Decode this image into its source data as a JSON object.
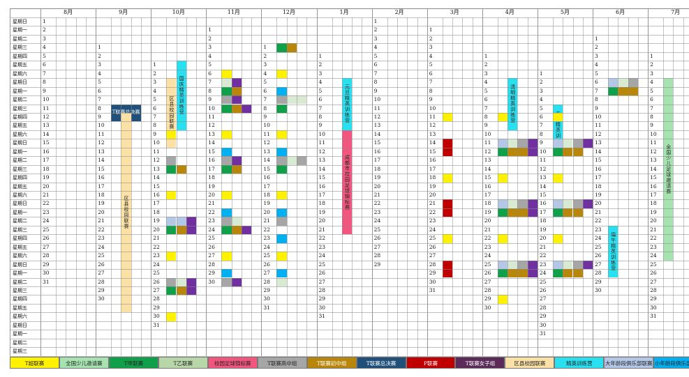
{
  "months": [
    {
      "label": "8月",
      "start": 0,
      "days": 31
    },
    {
      "label": "9月",
      "start": 3,
      "days": 30
    },
    {
      "label": "10月",
      "start": 5,
      "days": 31
    },
    {
      "label": "11月",
      "start": 1,
      "days": 30
    },
    {
      "label": "12月",
      "start": 3,
      "days": 31
    },
    {
      "label": "1月",
      "start": 4,
      "days": 31
    },
    {
      "label": "2月",
      "start": 0,
      "days": 29
    },
    {
      "label": "3月",
      "start": 1,
      "days": 31
    },
    {
      "label": "4月",
      "start": 4,
      "days": 30
    },
    {
      "label": "5月",
      "start": 6,
      "days": 31
    },
    {
      "label": "6月",
      "start": 2,
      "days": 30
    },
    {
      "label": "7月",
      "start": 4,
      "days": 31
    }
  ],
  "weekdays": [
    "星期日",
    "星期一",
    "星期二",
    "星期三",
    "星期四",
    "星期五",
    "星期六"
  ],
  "events": [
    {
      "m": 1,
      "c": 1,
      "r0": 7,
      "r1": 8,
      "color": "#20507a",
      "text": "T联赛总决赛",
      "vertical": false,
      "tc": "#ffffff",
      "span": 3
    },
    {
      "m": 1,
      "c": 2,
      "r0": 8,
      "r1": 30,
      "color": "#fbe1a6",
      "text": "区县校园联赛",
      "vertical": true,
      "tc": "#222222",
      "span": 1
    },
    {
      "m": 2,
      "c": 1,
      "r0": 2,
      "r1": 9,
      "color": "#fbe1a6",
      "text": "区县校园联赛",
      "vertical": true,
      "tc": "#222222",
      "span": 1
    },
    {
      "m": 2,
      "c": 2,
      "r0": 0,
      "r1": 7,
      "color": "#29e0f0",
      "text": "国庆精英训练营",
      "vertical": true,
      "tc": "#222222",
      "span": 1
    },
    {
      "m": 5,
      "c": 2,
      "r0": 3,
      "r1": 8,
      "color": "#29e0f0",
      "text": "元旦精英训练营",
      "vertical": true,
      "tc": "#222222",
      "span": 1
    },
    {
      "m": 5,
      "c": 2,
      "r0": 9,
      "r1": 20,
      "color": "#f2557e",
      "text": "成都市校园足球锦标赛",
      "vertical": true,
      "tc": "#222222",
      "span": 1
    },
    {
      "m": 8,
      "c": 2,
      "r0": 3,
      "r1": 8,
      "color": "#29e0f0",
      "text": "清明精英训练营",
      "vertical": true,
      "tc": "#222222",
      "span": 1
    },
    {
      "m": 9,
      "c": 1,
      "r0": 4,
      "r1": 9,
      "color": "#29e0f0",
      "text": "五一精英训练营",
      "vertical": true,
      "tc": "#222222",
      "span": 1
    },
    {
      "m": 10,
      "c": 1,
      "r0": 22,
      "r1": 27,
      "color": "#29e0f0",
      "text": "端午精英训练营",
      "vertical": true,
      "tc": "#222222",
      "span": 1
    },
    {
      "m": 11,
      "c": 1,
      "r0": 3,
      "r1": 23,
      "color": "#a7e3b0",
      "text": "全国少儿足球邀请赛",
      "vertical": true,
      "tc": "#222222",
      "span": 1
    }
  ],
  "chips": [
    {
      "m": 4,
      "c": 1,
      "d": 1,
      "color": "#11a04a"
    },
    {
      "m": 4,
      "c": 2,
      "d": 1,
      "color": "#b8860b"
    },
    {
      "m": 4,
      "c": 1,
      "d": 4,
      "color": "#fff200"
    },
    {
      "m": 4,
      "c": 1,
      "d": 6,
      "color": "#00b0f0"
    },
    {
      "m": 4,
      "c": 1,
      "d": 7,
      "color": "#a6a6a6"
    },
    {
      "m": 4,
      "c": 2,
      "d": 7,
      "color": "#d9ead3"
    },
    {
      "m": 4,
      "c": 3,
      "d": 7,
      "color": "#d9ead3"
    },
    {
      "m": 4,
      "c": 1,
      "d": 8,
      "color": "#11a04a"
    },
    {
      "m": 4,
      "c": 1,
      "d": 11,
      "color": "#fff200"
    },
    {
      "m": 4,
      "c": 1,
      "d": 13,
      "color": "#00b0f0"
    },
    {
      "m": 4,
      "c": 1,
      "d": 14,
      "color": "#a6a6a6"
    },
    {
      "m": 4,
      "c": 2,
      "d": 14,
      "color": "#d9ead3"
    },
    {
      "m": 4,
      "c": 3,
      "d": 14,
      "color": "#a6a6a6"
    },
    {
      "m": 4,
      "c": 1,
      "d": 15,
      "color": "#11a04a"
    },
    {
      "m": 4,
      "c": 1,
      "d": 18,
      "color": "#fff200"
    },
    {
      "m": 4,
      "c": 1,
      "d": 20,
      "color": "#00b0f0"
    },
    {
      "m": 4,
      "c": 1,
      "d": 21,
      "color": "#a6a6a6"
    },
    {
      "m": 4,
      "c": 1,
      "d": 23,
      "color": "#00b0f0"
    },
    {
      "m": 4,
      "c": 1,
      "d": 25,
      "color": "#fff200"
    },
    {
      "m": 4,
      "c": 1,
      "d": 27,
      "color": "#00b0f0"
    },
    {
      "m": 4,
      "c": 1,
      "d": 28,
      "color": "#d9ead3"
    },
    {
      "m": 3,
      "c": 1,
      "d": 7,
      "color": "#d9ead3"
    },
    {
      "m": 3,
      "c": 2,
      "d": 7,
      "color": "#7030a0"
    },
    {
      "m": 3,
      "c": 1,
      "d": 8,
      "color": "#11a04a"
    },
    {
      "m": 3,
      "c": 2,
      "d": 8,
      "color": "#b8860b"
    },
    {
      "m": 3,
      "c": 1,
      "d": 6,
      "color": "#fff200"
    },
    {
      "m": 3,
      "c": 1,
      "d": 13,
      "color": "#fff200"
    },
    {
      "m": 3,
      "c": 1,
      "d": 9,
      "color": "#a6a6a6"
    },
    {
      "m": 3,
      "c": 2,
      "d": 9,
      "color": "#7030a0"
    },
    {
      "m": 3,
      "c": 1,
      "d": 10,
      "color": "#11a04a"
    },
    {
      "m": 3,
      "c": 2,
      "d": 10,
      "color": "#b8860b"
    },
    {
      "m": 3,
      "c": 3,
      "d": 10,
      "color": "#7030a0"
    },
    {
      "m": 3,
      "c": 1,
      "d": 15,
      "color": "#00b0f0"
    },
    {
      "m": 3,
      "c": 1,
      "d": 16,
      "color": "#a6a6a6"
    },
    {
      "m": 3,
      "c": 2,
      "d": 16,
      "color": "#7030a0"
    },
    {
      "m": 3,
      "c": 1,
      "d": 17,
      "color": "#11a04a"
    },
    {
      "m": 3,
      "c": 2,
      "d": 17,
      "color": "#b8860b"
    },
    {
      "m": 3,
      "c": 1,
      "d": 20,
      "color": "#fff200"
    },
    {
      "m": 3,
      "c": 1,
      "d": 22,
      "color": "#00b0f0"
    },
    {
      "m": 3,
      "c": 1,
      "d": 23,
      "color": "#a6a6a6"
    },
    {
      "m": 3,
      "c": 2,
      "d": 23,
      "color": "#d9ead3"
    },
    {
      "m": 3,
      "c": 1,
      "d": 24,
      "color": "#11a04a"
    },
    {
      "m": 3,
      "c": 2,
      "d": 24,
      "color": "#b8860b"
    },
    {
      "m": 3,
      "c": 3,
      "d": 24,
      "color": "#7030a0"
    },
    {
      "m": 3,
      "c": 1,
      "d": 27,
      "color": "#fff200"
    },
    {
      "m": 3,
      "c": 1,
      "d": 29,
      "color": "#00b0f0"
    },
    {
      "m": 3,
      "c": 1,
      "d": 30,
      "color": "#a6a6a6"
    },
    {
      "m": 3,
      "c": 2,
      "d": 30,
      "color": "#7030a0"
    },
    {
      "m": 2,
      "c": 1,
      "d": 9,
      "color": "#fff200"
    },
    {
      "m": 2,
      "c": 1,
      "d": 12,
      "color": "#a6a6a6"
    },
    {
      "m": 2,
      "c": 1,
      "d": 13,
      "color": "#11a04a"
    },
    {
      "m": 2,
      "c": 2,
      "d": 13,
      "color": "#b8860b"
    },
    {
      "m": 2,
      "c": 1,
      "d": 16,
      "color": "#fff200"
    },
    {
      "m": 2,
      "c": 1,
      "d": 19,
      "color": "#b4c7e7"
    },
    {
      "m": 2,
      "c": 2,
      "d": 19,
      "color": "#b4c7e7"
    },
    {
      "m": 2,
      "c": 3,
      "d": 19,
      "color": "#7030a0"
    },
    {
      "m": 2,
      "c": 1,
      "d": 20,
      "color": "#11a04a"
    },
    {
      "m": 2,
      "c": 2,
      "d": 20,
      "color": "#b8860b"
    },
    {
      "m": 2,
      "c": 3,
      "d": 20,
      "color": "#7030a0"
    },
    {
      "m": 2,
      "c": 1,
      "d": 23,
      "color": "#fff200"
    },
    {
      "m": 2,
      "c": 1,
      "d": 26,
      "color": "#a6a6a6"
    },
    {
      "m": 2,
      "c": 2,
      "d": 26,
      "color": "#d9ead3"
    },
    {
      "m": 2,
      "c": 3,
      "d": 26,
      "color": "#7030a0"
    },
    {
      "m": 2,
      "c": 1,
      "d": 27,
      "color": "#11a04a"
    },
    {
      "m": 2,
      "c": 2,
      "d": 27,
      "color": "#b8860b"
    },
    {
      "m": 2,
      "c": 3,
      "d": 27,
      "color": "#7030a0"
    },
    {
      "m": 2,
      "c": 1,
      "d": 30,
      "color": "#fff200"
    },
    {
      "m": 7,
      "c": 1,
      "d": 11,
      "color": "#fff200"
    },
    {
      "m": 7,
      "c": 1,
      "d": 14,
      "color": "#c00000"
    },
    {
      "m": 7,
      "c": 1,
      "d": 15,
      "color": "#c00000"
    },
    {
      "m": 7,
      "c": 1,
      "d": 18,
      "color": "#fff200"
    },
    {
      "m": 7,
      "c": 1,
      "d": 21,
      "color": "#c00000"
    },
    {
      "m": 7,
      "c": 1,
      "d": 22,
      "color": "#c00000"
    },
    {
      "m": 7,
      "c": 1,
      "d": 25,
      "color": "#fff200"
    },
    {
      "m": 7,
      "c": 1,
      "d": 28,
      "color": "#c00000"
    },
    {
      "m": 7,
      "c": 1,
      "d": 29,
      "color": "#c00000"
    },
    {
      "m": 8,
      "c": 1,
      "d": 8,
      "color": "#fff200"
    },
    {
      "m": 8,
      "c": 1,
      "d": 11,
      "color": "#b4c7e7"
    },
    {
      "m": 8,
      "c": 2,
      "d": 11,
      "color": "#d9ead3"
    },
    {
      "m": 8,
      "c": 3,
      "d": 11,
      "color": "#a6a6a6"
    },
    {
      "m": 8,
      "c": 4,
      "d": 11,
      "color": "#7030a0"
    },
    {
      "m": 8,
      "c": 1,
      "d": 12,
      "color": "#11a04a"
    },
    {
      "m": 8,
      "c": 2,
      "d": 12,
      "color": "#b8860b"
    },
    {
      "m": 8,
      "c": 3,
      "d": 12,
      "color": "#b8860b"
    },
    {
      "m": 8,
      "c": 4,
      "d": 12,
      "color": "#7030a0"
    },
    {
      "m": 8,
      "c": 1,
      "d": 15,
      "color": "#fff200"
    },
    {
      "m": 8,
      "c": 1,
      "d": 18,
      "color": "#b4c7e7"
    },
    {
      "m": 8,
      "c": 2,
      "d": 18,
      "color": "#d9ead3"
    },
    {
      "m": 8,
      "c": 3,
      "d": 18,
      "color": "#a6a6a6"
    },
    {
      "m": 8,
      "c": 4,
      "d": 18,
      "color": "#7030a0"
    },
    {
      "m": 8,
      "c": 1,
      "d": 19,
      "color": "#11a04a"
    },
    {
      "m": 8,
      "c": 2,
      "d": 19,
      "color": "#b8860b"
    },
    {
      "m": 8,
      "c": 3,
      "d": 19,
      "color": "#b8860b"
    },
    {
      "m": 8,
      "c": 4,
      "d": 19,
      "color": "#7030a0"
    },
    {
      "m": 8,
      "c": 1,
      "d": 22,
      "color": "#fff200"
    },
    {
      "m": 8,
      "c": 1,
      "d": 25,
      "color": "#b4c7e7"
    },
    {
      "m": 8,
      "c": 2,
      "d": 25,
      "color": "#d9ead3"
    },
    {
      "m": 8,
      "c": 3,
      "d": 25,
      "color": "#a6a6a6"
    },
    {
      "m": 8,
      "c": 4,
      "d": 25,
      "color": "#7030a0"
    },
    {
      "m": 8,
      "c": 1,
      "d": 26,
      "color": "#11a04a"
    },
    {
      "m": 8,
      "c": 2,
      "d": 26,
      "color": "#b8860b"
    },
    {
      "m": 8,
      "c": 3,
      "d": 26,
      "color": "#b8860b"
    },
    {
      "m": 8,
      "c": 4,
      "d": 26,
      "color": "#7030a0"
    },
    {
      "m": 8,
      "c": 1,
      "d": 29,
      "color": "#fff200"
    },
    {
      "m": 9,
      "c": 1,
      "d": 6,
      "color": "#fff200"
    },
    {
      "m": 9,
      "c": 1,
      "d": 9,
      "color": "#b4c7e7"
    },
    {
      "m": 9,
      "c": 2,
      "d": 9,
      "color": "#d9ead3"
    },
    {
      "m": 9,
      "c": 3,
      "d": 9,
      "color": "#a6a6a6"
    },
    {
      "m": 9,
      "c": 4,
      "d": 9,
      "color": "#7030a0"
    },
    {
      "m": 9,
      "c": 1,
      "d": 10,
      "color": "#11a04a"
    },
    {
      "m": 9,
      "c": 2,
      "d": 10,
      "color": "#b8860b"
    },
    {
      "m": 9,
      "c": 3,
      "d": 10,
      "color": "#b8860b"
    },
    {
      "m": 9,
      "c": 1,
      "d": 13,
      "color": "#fff200"
    },
    {
      "m": 9,
      "c": 1,
      "d": 16,
      "color": "#b4c7e7"
    },
    {
      "m": 9,
      "c": 2,
      "d": 16,
      "color": "#d9ead3"
    },
    {
      "m": 9,
      "c": 3,
      "d": 16,
      "color": "#a6a6a6"
    },
    {
      "m": 9,
      "c": 4,
      "d": 16,
      "color": "#7030a0"
    },
    {
      "m": 9,
      "c": 1,
      "d": 17,
      "color": "#11a04a"
    },
    {
      "m": 9,
      "c": 2,
      "d": 17,
      "color": "#b8860b"
    },
    {
      "m": 9,
      "c": 3,
      "d": 17,
      "color": "#b8860b"
    },
    {
      "m": 9,
      "c": 1,
      "d": 20,
      "color": "#fff200"
    },
    {
      "m": 9,
      "c": 1,
      "d": 23,
      "color": "#b4c7e7"
    },
    {
      "m": 9,
      "c": 2,
      "d": 23,
      "color": "#d9ead3"
    },
    {
      "m": 9,
      "c": 3,
      "d": 23,
      "color": "#a6a6a6"
    },
    {
      "m": 9,
      "c": 4,
      "d": 23,
      "color": "#7030a0"
    },
    {
      "m": 9,
      "c": 1,
      "d": 24,
      "color": "#11a04a"
    },
    {
      "m": 9,
      "c": 2,
      "d": 24,
      "color": "#b8860b"
    },
    {
      "m": 9,
      "c": 3,
      "d": 24,
      "color": "#b8860b"
    },
    {
      "m": 10,
      "c": 1,
      "d": 6,
      "color": "#b4c7e7"
    },
    {
      "m": 10,
      "c": 2,
      "d": 6,
      "color": "#d9ead3"
    },
    {
      "m": 10,
      "c": 3,
      "d": 6,
      "color": "#a6a6a6"
    },
    {
      "m": 10,
      "c": 1,
      "d": 7,
      "color": "#11a04a"
    },
    {
      "m": 10,
      "c": 2,
      "d": 7,
      "color": "#b8860b"
    },
    {
      "m": 10,
      "c": 3,
      "d": 7,
      "color": "#b8860b"
    }
  ],
  "legend": [
    {
      "label": "T超联赛",
      "color": "#fff200",
      "tc": "#222222"
    },
    {
      "label": "全国少儿邀请赛",
      "color": "#a7e3b0",
      "tc": "#222222"
    },
    {
      "label": "T甲联赛",
      "color": "#11a04a",
      "tc": "#222222"
    },
    {
      "label": "T乙联赛",
      "color": "#b8d7a8",
      "tc": "#222222"
    },
    {
      "label": "校园足球锦标赛",
      "color": "#f2557e",
      "tc": "#222222"
    },
    {
      "label": "T联赛高中组",
      "color": "#a6a6a6",
      "tc": "#222222"
    },
    {
      "label": "T联赛初中组",
      "color": "#b8860b",
      "tc": "#ffffff"
    },
    {
      "label": "T联赛总决赛",
      "color": "#20507a",
      "tc": "#ffffff"
    },
    {
      "label": "P联赛",
      "color": "#c00000",
      "tc": "#ffffff"
    },
    {
      "label": "T联赛女子组",
      "color": "#5b2a59",
      "tc": "#ffffff"
    },
    {
      "label": "区县校园联赛",
      "color": "#fbe1a6",
      "tc": "#222222"
    },
    {
      "label": "精英训练营",
      "color": "#29e0f0",
      "tc": "#222222"
    },
    {
      "label": "大年龄段俱乐部联赛",
      "color": "#b4c7e7",
      "tc": "#222222"
    },
    {
      "label": "小年龄段俱乐部联赛",
      "color": "#00b0f0",
      "tc": "#222222"
    }
  ]
}
